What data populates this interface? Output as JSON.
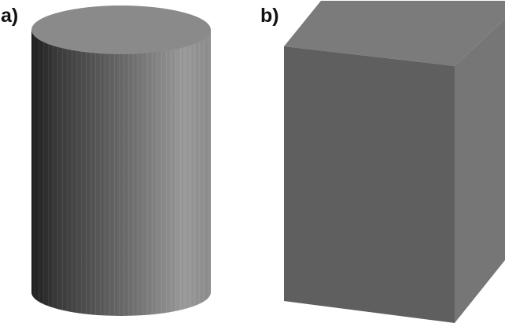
{
  "figure": {
    "panels": [
      {
        "label": "a)",
        "shape": "cylinder"
      },
      {
        "label": "b)",
        "shape": "rectangular-box"
      }
    ]
  },
  "colors": {
    "background": "#ffffff",
    "label_text": "#111111",
    "cylinder_dark_edge": "#1f1f1f",
    "cylinder_mid": "#6e6e6e",
    "cylinder_light_edge": "#9a9a9a",
    "cylinder_top": "#8a8a8a",
    "box_front": "#5f5f5f",
    "box_top": "#7b7b7b",
    "box_side": "#767676"
  }
}
